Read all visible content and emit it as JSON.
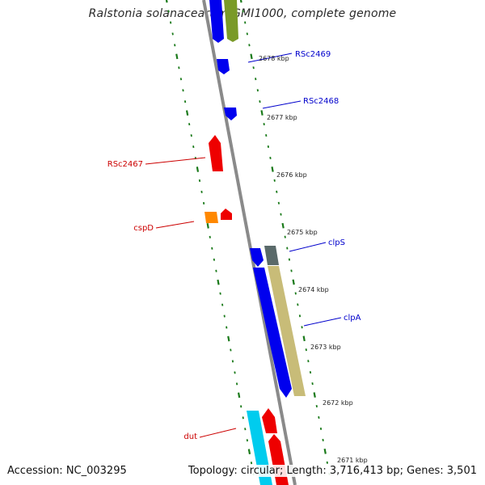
{
  "title": "Ralstonia solanacearum GMI1000, complete genome",
  "footer": {
    "accession": "Accession: NC_003295",
    "summary": "Topology: circular; Length: 3,716,413 bp; Genes: 3,501"
  },
  "colors": {
    "backbone": "#8a8a8a",
    "ticks": "#1a7a1a",
    "forward_label": "#0000cc",
    "reverse_label": "#cc0000"
  },
  "scale_labels": [
    "2678 kbp",
    "2677 kbp",
    "2676 kbp",
    "2675 kbp",
    "2674 kbp",
    "2673 kbp",
    "2672 kbp",
    "2671 kbp"
  ],
  "genes": [
    {
      "name": "RSc2469",
      "strand": "forward"
    },
    {
      "name": "RSc2468",
      "strand": "forward"
    },
    {
      "name": "RSc2467",
      "strand": "reverse"
    },
    {
      "name": "cspD",
      "strand": "reverse"
    },
    {
      "name": "clpS",
      "strand": "forward"
    },
    {
      "name": "clpA",
      "strand": "forward"
    },
    {
      "name": "dut",
      "strand": "reverse"
    }
  ]
}
